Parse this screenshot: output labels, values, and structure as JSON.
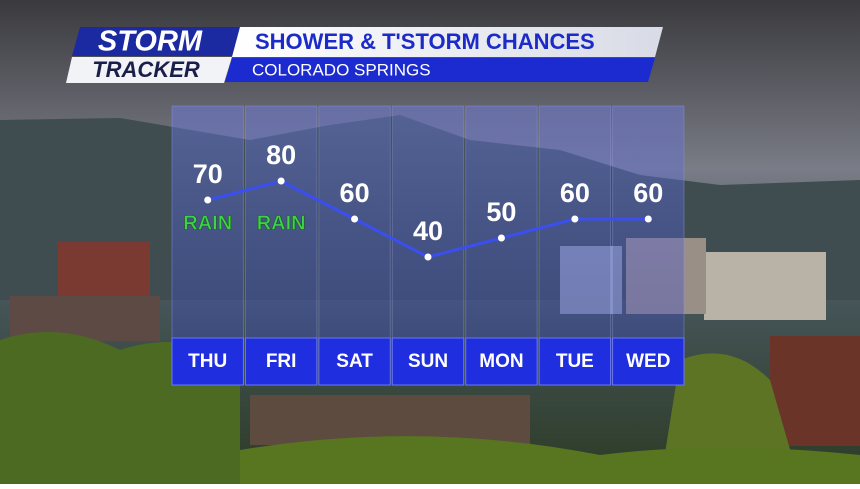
{
  "brand": {
    "line1": "STORM",
    "line2": "TRACKER"
  },
  "chart_data": {
    "type": "line",
    "title": "SHOWER & T'STORM CHANCES",
    "subtitle": "COLORADO SPRINGS",
    "categories": [
      "THU",
      "FRI",
      "SAT",
      "SUN",
      "MON",
      "TUE",
      "WED"
    ],
    "values": [
      70,
      80,
      60,
      40,
      50,
      60,
      60
    ],
    "annotations": [
      "RAIN",
      "RAIN",
      null,
      null,
      null,
      null,
      null
    ],
    "color": "#3b4ff0"
  }
}
